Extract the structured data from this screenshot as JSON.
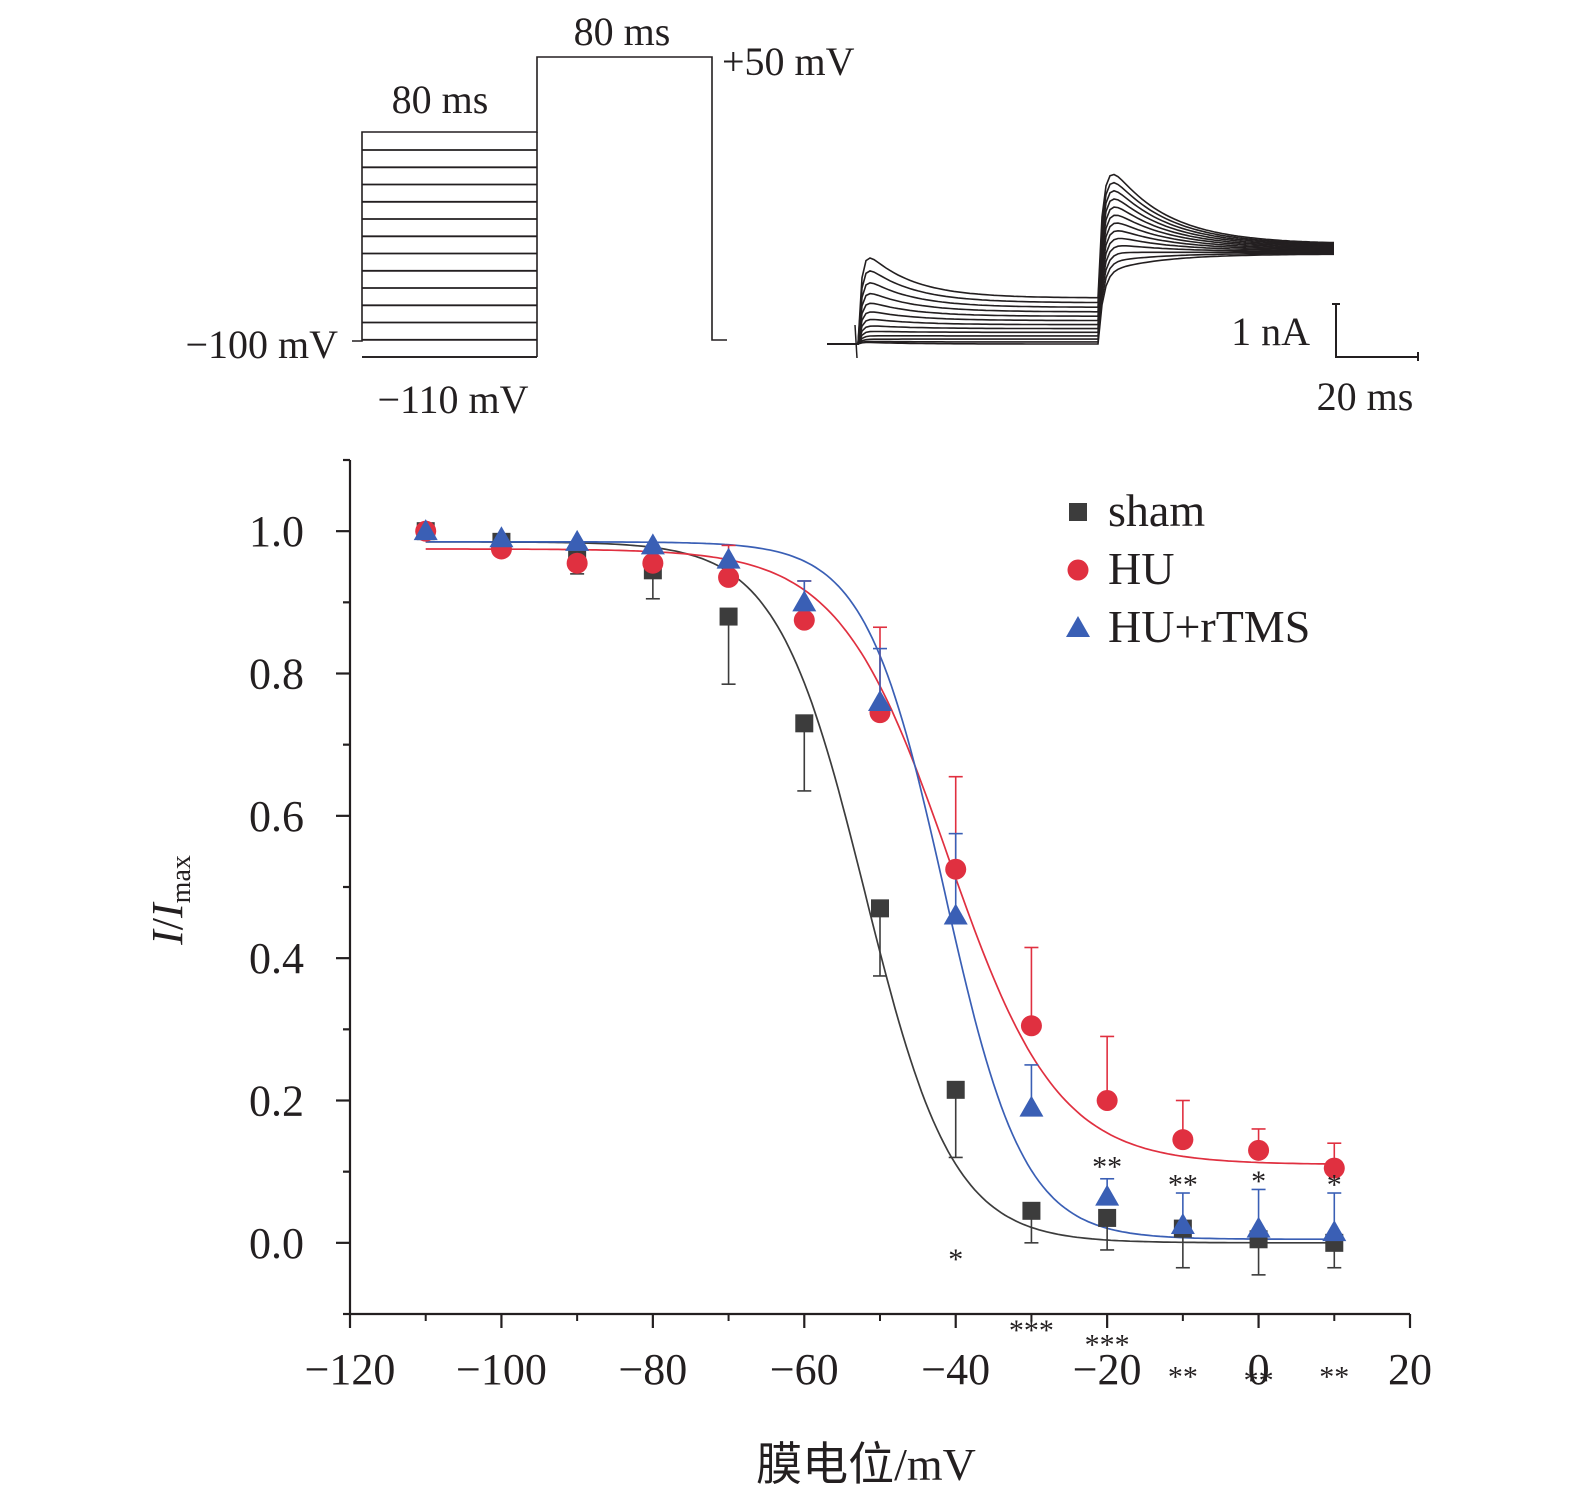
{
  "protocol": {
    "labels": {
      "pre_duration": "80 ms",
      "test_duration": "80 ms",
      "test_potential": "+50 mV",
      "holding_potential": "−100 mV",
      "min_prepulse": "−110 mV"
    },
    "prepulse_step_count": 13
  },
  "traces": {
    "scale_current": "1 nA",
    "scale_time": "20 ms",
    "trace_count": 13
  },
  "chart_data": {
    "type": "scatter",
    "xlabel": "膜电位/mV",
    "ylabel": {
      "main": "I",
      "sep": "/",
      "sub_main": "I",
      "sub": "max"
    },
    "xlim": [
      -120,
      20
    ],
    "ylim": [
      -0.1,
      1.1
    ],
    "x_ticks": [
      -120,
      -100,
      -80,
      -60,
      -40,
      -20,
      0,
      20
    ],
    "x_tick_labels": [
      "−120",
      "−100",
      "−80",
      "−60",
      "−40",
      "−20",
      "0",
      "20"
    ],
    "y_ticks": [
      0.0,
      0.2,
      0.4,
      0.6,
      0.8,
      1.0
    ],
    "y_tick_labels": [
      "0.0",
      "0.2",
      "0.4",
      "0.6",
      "0.8",
      "1.0"
    ],
    "grid": false,
    "legend_position": "top-right",
    "x": [
      -110,
      -100,
      -90,
      -80,
      -70,
      -60,
      -50,
      -40,
      -30,
      -20,
      -10,
      0,
      10
    ],
    "series": [
      {
        "name": "sham",
        "marker": "square",
        "color": "#3c3c3c",
        "values": [
          1.0,
          0.985,
          0.96,
          0.945,
          0.88,
          0.73,
          0.47,
          0.215,
          0.045,
          0.035,
          0.02,
          0.005,
          0.0
        ],
        "errors": [
          0.0,
          0.0,
          0.02,
          0.04,
          0.095,
          0.095,
          0.095,
          0.095,
          0.045,
          0.045,
          0.055,
          0.05,
          0.035
        ],
        "error_side": "down",
        "fit": {
          "top": 0.985,
          "bottom": 0.0,
          "v_half": -52,
          "k": 5.8
        }
      },
      {
        "name": "HU",
        "marker": "circle",
        "color": "#e03040",
        "values": [
          1.0,
          0.975,
          0.955,
          0.955,
          0.935,
          0.875,
          0.745,
          0.525,
          0.305,
          0.2,
          0.145,
          0.13,
          0.105
        ],
        "errors": [
          0.0,
          0.0,
          0.0,
          0.0,
          0.045,
          0.055,
          0.12,
          0.13,
          0.11,
          0.09,
          0.055,
          0.03,
          0.035
        ],
        "error_side": "up",
        "fit": {
          "top": 0.975,
          "bottom": 0.11,
          "v_half": -41,
          "k": 7.2
        }
      },
      {
        "name": "HU+rTMS",
        "marker": "triangle",
        "color": "#3a5fb5",
        "values": [
          1.0,
          0.99,
          0.985,
          0.98,
          0.96,
          0.9,
          0.76,
          0.46,
          0.19,
          0.065,
          0.025,
          0.02,
          0.015
        ],
        "errors": [
          0.0,
          0.0,
          0.0,
          0.0,
          0.0,
          0.03,
          0.075,
          0.115,
          0.06,
          0.025,
          0.045,
          0.055,
          0.055
        ],
        "error_side": "up",
        "fit": {
          "top": 0.985,
          "bottom": 0.005,
          "v_half": -41.5,
          "k": 5.2
        }
      }
    ],
    "annotations": [
      {
        "x": -40,
        "y": -0.02,
        "text": "*"
      },
      {
        "x": -30,
        "y": -0.12,
        "text": "***"
      },
      {
        "x": -20,
        "y": 0.11,
        "text": "**"
      },
      {
        "x": -20,
        "y": -0.14,
        "text": "***"
      },
      {
        "x": -10,
        "y": 0.085,
        "text": "**"
      },
      {
        "x": -10,
        "y": -0.185,
        "text": "**"
      },
      {
        "x": 0,
        "y": 0.09,
        "text": "*"
      },
      {
        "x": 0,
        "y": -0.19,
        "text": "**"
      },
      {
        "x": 10,
        "y": 0.085,
        "text": "*"
      },
      {
        "x": 10,
        "y": -0.185,
        "text": "**"
      }
    ]
  }
}
